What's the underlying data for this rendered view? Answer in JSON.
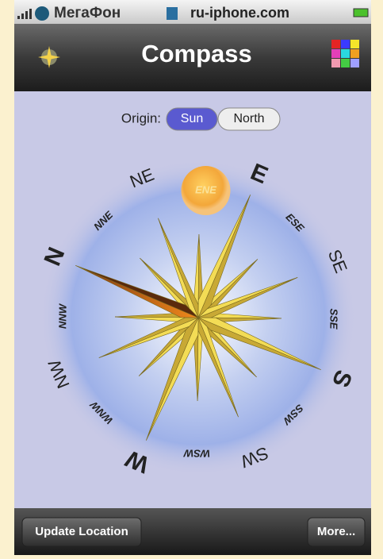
{
  "status_bar": {
    "carrier": "МегаФон",
    "url": "ru-iphone.com"
  },
  "nav_bar": {
    "title": "Compass"
  },
  "origin": {
    "label": "Origin:",
    "options": [
      "Sun",
      "North"
    ],
    "selected_index": 0
  },
  "compass": {
    "points": [
      "N",
      "NNE",
      "NE",
      "ENE",
      "E",
      "ESE",
      "SE",
      "SSE",
      "S",
      "SSW",
      "SW",
      "WSW",
      "W",
      "WNW",
      "NW",
      "NNW"
    ],
    "sun_point_index": 3
  },
  "toolbar": {
    "buttons": [
      "Update Location",
      "More..."
    ]
  }
}
